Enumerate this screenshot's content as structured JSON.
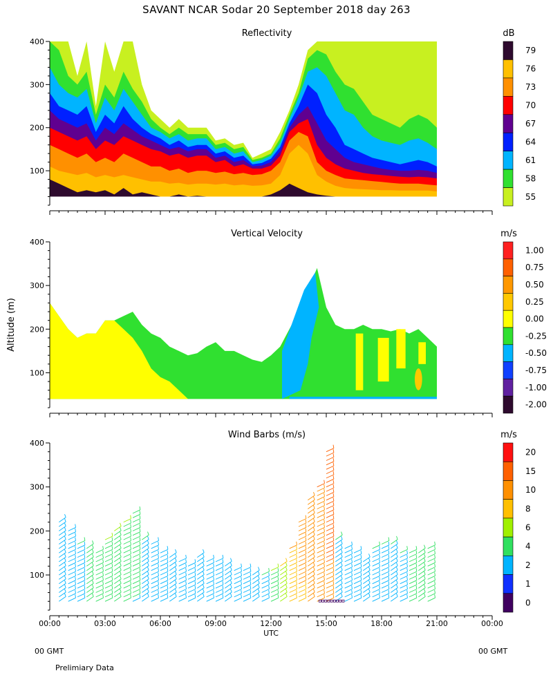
{
  "title": "SAVANT  NCAR Sodar  20 September 2018  day 263",
  "y_axis_label": "Altitude (m)",
  "x_axis_label": "UTC",
  "x_ticks": [
    "00:00",
    "03:00",
    "06:00",
    "09:00",
    "12:00",
    "15:00",
    "18:00",
    "21:00",
    "00:00"
  ],
  "gmt_left": "00 GMT",
  "gmt_right": "00 GMT",
  "footer_note": "Prelimiary Data",
  "chart_data": [
    {
      "type": "heatmap",
      "title": "Reflectivity",
      "units": "dB",
      "xlim": [
        0,
        24
      ],
      "ylim": [
        20,
        400
      ],
      "y_ticks": [
        100,
        200,
        300,
        400
      ],
      "colorbar": {
        "labels": [
          "79",
          "76",
          "73",
          "70",
          "67",
          "64",
          "61",
          "58",
          "55"
        ],
        "colors": [
          "#2e0a2e",
          "#ffc000",
          "#ff9000",
          "#ff0000",
          "#600090",
          "#0020ff",
          "#00b4ff",
          "#30e030",
          "#c8f020"
        ]
      },
      "data_extent_hours": [
        0,
        21
      ],
      "top_boundary": {
        "x": [
          0,
          0.5,
          1,
          1.5,
          2,
          2.5,
          3,
          3.5,
          4,
          4.5,
          5,
          5.5,
          6,
          6.5,
          7,
          7.5,
          8,
          8.5,
          9,
          9.5,
          10,
          10.5,
          11,
          11.5,
          12,
          12.5,
          13,
          13.5,
          14,
          14.5,
          15,
          15.5,
          16,
          16.5,
          17,
          17.5,
          18,
          18.5,
          19,
          19.5,
          20,
          20.5,
          21
        ],
        "y": [
          400,
          400,
          400,
          320,
          400,
          250,
          400,
          330,
          400,
          400,
          300,
          240,
          220,
          200,
          220,
          200,
          200,
          200,
          170,
          175,
          160,
          165,
          130,
          140,
          150,
          190,
          240,
          300,
          380,
          400,
          400,
          400,
          400,
          400,
          400,
          400,
          400,
          400,
          400,
          400,
          400,
          400,
          400
        ]
      },
      "band_tops": {
        "55": [
          400,
          400,
          400,
          320,
          400,
          250,
          400,
          330,
          400,
          400,
          300,
          240,
          220,
          200,
          220,
          200,
          200,
          200,
          170,
          175,
          160,
          165,
          130,
          140,
          150,
          190,
          240,
          300,
          380,
          400,
          400,
          400,
          400,
          400,
          400,
          400,
          400,
          400,
          400,
          400,
          400,
          400,
          400
        ],
        "58": [
          400,
          380,
          320,
          300,
          330,
          230,
          300,
          270,
          330,
          290,
          260,
          220,
          200,
          185,
          200,
          185,
          185,
          185,
          160,
          165,
          150,
          155,
          125,
          130,
          140,
          175,
          230,
          280,
          360,
          380,
          370,
          330,
          300,
          290,
          260,
          230,
          220,
          210,
          200,
          220,
          230,
          220,
          200
        ],
        "61": [
          340,
          300,
          280,
          270,
          290,
          210,
          270,
          240,
          290,
          260,
          230,
          200,
          190,
          175,
          185,
          170,
          175,
          175,
          150,
          155,
          140,
          145,
          120,
          125,
          135,
          165,
          220,
          270,
          330,
          340,
          320,
          280,
          240,
          230,
          200,
          180,
          170,
          165,
          160,
          170,
          175,
          165,
          150
        ],
        "64": [
          280,
          250,
          240,
          230,
          250,
          190,
          230,
          210,
          250,
          220,
          200,
          185,
          175,
          160,
          170,
          155,
          160,
          160,
          140,
          145,
          130,
          135,
          115,
          118,
          128,
          155,
          210,
          250,
          300,
          280,
          230,
          200,
          160,
          150,
          140,
          130,
          125,
          120,
          115,
          120,
          125,
          120,
          110
        ],
        "67": [
          240,
          220,
          210,
          200,
          210,
          170,
          200,
          185,
          210,
          195,
          180,
          170,
          160,
          150,
          155,
          145,
          150,
          150,
          130,
          135,
          120,
          125,
          110,
          112,
          120,
          145,
          200,
          230,
          250,
          210,
          170,
          150,
          130,
          120,
          115,
          110,
          105,
          102,
          100,
          100,
          102,
          100,
          95
        ],
        "70": [
          200,
          190,
          180,
          170,
          180,
          150,
          170,
          160,
          180,
          170,
          160,
          150,
          145,
          135,
          140,
          130,
          135,
          135,
          120,
          125,
          110,
          115,
          105,
          105,
          112,
          135,
          190,
          210,
          220,
          160,
          130,
          115,
          105,
          100,
          95,
          92,
          90,
          88,
          86,
          85,
          86,
          85,
          82
        ],
        "73": [
          160,
          150,
          140,
          130,
          140,
          120,
          130,
          120,
          140,
          130,
          120,
          110,
          110,
          100,
          105,
          95,
          100,
          100,
          95,
          98,
          92,
          95,
          90,
          92,
          100,
          120,
          170,
          190,
          180,
          120,
          100,
          90,
          82,
          80,
          78,
          76,
          74,
          72,
          70,
          70,
          70,
          68,
          66
        ],
        "76": [
          110,
          100,
          95,
          90,
          95,
          85,
          90,
          85,
          90,
          85,
          80,
          75,
          75,
          70,
          72,
          68,
          70,
          70,
          68,
          70,
          66,
          68,
          65,
          66,
          70,
          90,
          140,
          160,
          140,
          90,
          75,
          65,
          60,
          58,
          57,
          56,
          55,
          55,
          54,
          54,
          54,
          54,
          52
        ],
        "79": [
          80,
          70,
          60,
          50,
          55,
          50,
          55,
          45,
          60,
          45,
          50,
          45,
          40,
          40,
          45,
          40,
          42,
          40,
          40,
          40,
          40,
          40,
          40,
          40,
          45,
          55,
          70,
          60,
          50,
          45,
          42,
          40,
          40,
          40,
          40,
          40,
          40,
          40,
          40,
          40,
          40,
          40,
          40
        ]
      }
    },
    {
      "type": "heatmap",
      "title": "Vertical Velocity",
      "units": "m/s",
      "xlim": [
        0,
        24
      ],
      "ylim": [
        20,
        400
      ],
      "y_ticks": [
        100,
        200,
        300,
        400
      ],
      "colorbar": {
        "labels": [
          "1.00",
          "0.75",
          "0.50",
          "0.25",
          "0.00",
          "-0.25",
          "-0.50",
          "-0.75",
          "-1.00",
          "-2.00"
        ],
        "colors": [
          "#ff2020",
          "#ff6000",
          "#ff9800",
          "#ffc800",
          "#ffff00",
          "#30e030",
          "#00b4ff",
          "#1040ff",
          "#6020a0",
          "#2e0a2e"
        ]
      },
      "data_extent_hours": [
        0,
        21
      ],
      "top_boundary": {
        "x": [
          0,
          0.5,
          1,
          1.5,
          2,
          2.5,
          3,
          3.5,
          4,
          4.5,
          5,
          5.5,
          6,
          6.5,
          7,
          7.5,
          8,
          8.5,
          9,
          9.5,
          10,
          10.5,
          11,
          11.5,
          12,
          12.5,
          13,
          13.5,
          14,
          14.5,
          15,
          15.5,
          16,
          16.5,
          17,
          17.5,
          18,
          18.5,
          19,
          19.5,
          20,
          20.5,
          21
        ],
        "y": [
          260,
          230,
          200,
          180,
          190,
          190,
          220,
          220,
          230,
          240,
          210,
          190,
          180,
          160,
          150,
          140,
          145,
          160,
          170,
          150,
          150,
          140,
          130,
          125,
          140,
          160,
          200,
          240,
          290,
          340,
          250,
          210,
          200,
          200,
          210,
          200,
          200,
          195,
          200,
          190,
          200,
          180,
          160
        ]
      },
      "green_top": {
        "x": [
          0,
          0.5,
          1,
          1.5,
          2,
          2.5,
          3,
          3.5,
          4,
          4.5,
          5,
          5.5,
          6,
          6.5,
          7,
          7.5
        ],
        "y": [
          260,
          230,
          200,
          180,
          190,
          190,
          220,
          220,
          200,
          180,
          150,
          110,
          90,
          80,
          60,
          40
        ]
      },
      "yellow_blob": {
        "x": [
          19.8,
          20.2
        ],
        "y": [
          60,
          110
        ]
      }
    },
    {
      "type": "scatter",
      "title": "Wind Barbs (m/s)",
      "units": "m/s",
      "xlim": [
        0,
        24
      ],
      "ylim": [
        20,
        400
      ],
      "y_ticks": [
        100,
        200,
        300,
        400
      ],
      "colorbar": {
        "labels": [
          "20",
          "15",
          "10",
          "8",
          "6",
          "4",
          "2",
          "1",
          "0"
        ],
        "colors": [
          "#ff1010",
          "#ff6000",
          "#ff9000",
          "#ffc000",
          "#a0f000",
          "#30e060",
          "#00b4ff",
          "#1030ff",
          "#400060"
        ]
      },
      "barb_columns": {
        "x": [
          0.5,
          1,
          1.5,
          2,
          2.5,
          3,
          3.5,
          4,
          4.5,
          5,
          5.5,
          6,
          6.5,
          7,
          7.5,
          8,
          8.5,
          9,
          9.5,
          10,
          10.5,
          11,
          11.5,
          12,
          12.5,
          13,
          13.5,
          14,
          14.5,
          15,
          15.5,
          16,
          16.5,
          17,
          17.5,
          18,
          18.5,
          19,
          19.5,
          20,
          20.5
        ],
        "top_alt": [
          220,
          200,
          170,
          160,
          150,
          180,
          200,
          220,
          240,
          180,
          170,
          150,
          140,
          130,
          120,
          140,
          130,
          130,
          120,
          110,
          110,
          100,
          100,
          110,
          120,
          160,
          220,
          270,
          300,
          380,
          180,
          160,
          150,
          130,
          160,
          170,
          170,
          150,
          150,
          150,
          160
        ],
        "speed": [
          3,
          3,
          4,
          5,
          5,
          6,
          6,
          6,
          5,
          4,
          3,
          3,
          3,
          3,
          3,
          3,
          3,
          3,
          3,
          3,
          3,
          3,
          4,
          6,
          8,
          10,
          12,
          14,
          15,
          18,
          4,
          3,
          3,
          3,
          4,
          4,
          4,
          4,
          5,
          5,
          5
        ]
      }
    }
  ]
}
